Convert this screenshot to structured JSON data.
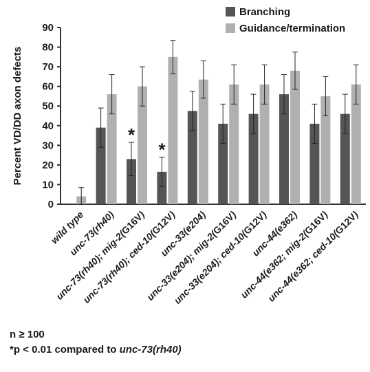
{
  "chart_data": {
    "type": "bar",
    "ylabel": "Percent VD/DD axon defects",
    "ylim": [
      0,
      90
    ],
    "yticks": [
      0,
      10,
      20,
      30,
      40,
      50,
      60,
      70,
      80,
      90
    ],
    "grid": false,
    "legend_position": "top-right",
    "categories": [
      {
        "label": "wild type",
        "parts": [
          {
            "t": "wild type",
            "i": true
          }
        ]
      },
      {
        "label": "unc-73(rh40)",
        "parts": [
          {
            "t": "unc-73(",
            "i": true
          },
          {
            "t": "rh40",
            "i": true
          },
          {
            "t": ")",
            "i": true
          }
        ]
      },
      {
        "label": "unc-73(rh40); mig-2(G16V)",
        "parts": [
          {
            "t": "unc-73(",
            "i": true
          },
          {
            "t": "rh40",
            "i": true
          },
          {
            "t": "); mig-2(",
            "i": true
          },
          {
            "t": "G16V",
            "i": false
          },
          {
            "t": ")",
            "i": true
          }
        ]
      },
      {
        "label": "unc-73(rh40); ced-10(G12V)",
        "parts": [
          {
            "t": "unc-73(",
            "i": true
          },
          {
            "t": "rh40",
            "i": true
          },
          {
            "t": "); ced-10(",
            "i": true
          },
          {
            "t": "G12V",
            "i": false
          },
          {
            "t": ")",
            "i": true
          }
        ]
      },
      {
        "label": "unc-33(e204)",
        "parts": [
          {
            "t": "unc-33(",
            "i": true
          },
          {
            "t": "e204",
            "i": true
          },
          {
            "t": ")",
            "i": true
          }
        ]
      },
      {
        "label": "unc-33(e204); mig-2(G16V)",
        "parts": [
          {
            "t": "unc-33(",
            "i": true
          },
          {
            "t": "e204",
            "i": true
          },
          {
            "t": "); mig-2(",
            "i": true
          },
          {
            "t": "G16V",
            "i": false
          },
          {
            "t": ")",
            "i": true
          }
        ]
      },
      {
        "label": "unc-33(e204); ced-10(G12V)",
        "parts": [
          {
            "t": "unc-33(",
            "i": true
          },
          {
            "t": "e204",
            "i": true
          },
          {
            "t": "); ced-10(",
            "i": true
          },
          {
            "t": "G12V",
            "i": false
          },
          {
            "t": ")",
            "i": true
          }
        ]
      },
      {
        "label": "unc-44(e362)",
        "parts": [
          {
            "t": "unc-44(",
            "i": true
          },
          {
            "t": "e362",
            "i": true
          },
          {
            "t": ")",
            "i": true
          }
        ]
      },
      {
        "label": "unc-44(e362; mig-2(G16V)",
        "parts": [
          {
            "t": "unc-44(",
            "i": true
          },
          {
            "t": "e362",
            "i": true
          },
          {
            "t": "; mig-2(",
            "i": true
          },
          {
            "t": "G16V",
            "i": false
          },
          {
            "t": ")",
            "i": true
          }
        ]
      },
      {
        "label": "unc-44(e362; ced-10(G12V)",
        "parts": [
          {
            "t": "unc-44(",
            "i": true
          },
          {
            "t": "e362",
            "i": true
          },
          {
            "t": "; ced-10(",
            "i": true
          },
          {
            "t": "G12V",
            "i": false
          },
          {
            "t": ")",
            "i": true
          }
        ]
      }
    ],
    "series": [
      {
        "name": "Branching",
        "color": "#555555",
        "values": [
          0,
          39,
          23,
          16.5,
          47.5,
          41,
          46,
          56,
          41,
          46
        ],
        "errors": [
          0,
          10,
          8.5,
          7.5,
          10,
          10,
          10,
          10,
          10,
          10
        ]
      },
      {
        "name": "Guidance/termination",
        "color": "#b0b0b0",
        "values": [
          4,
          56,
          60,
          75,
          63.5,
          61,
          61,
          68,
          55,
          61
        ],
        "errors": [
          4.5,
          10,
          10,
          8.5,
          9.5,
          10,
          10,
          9.5,
          10,
          10
        ]
      }
    ],
    "annotations": [
      {
        "text": "*",
        "category_index": 2,
        "series_index": 0
      },
      {
        "text": "*",
        "category_index": 3,
        "series_index": 0
      }
    ]
  },
  "notes": {
    "n_line": "n ≥ 100",
    "p_prefix": "*p < 0.01 compared to ",
    "p_ref": "unc-73(rh40)"
  }
}
